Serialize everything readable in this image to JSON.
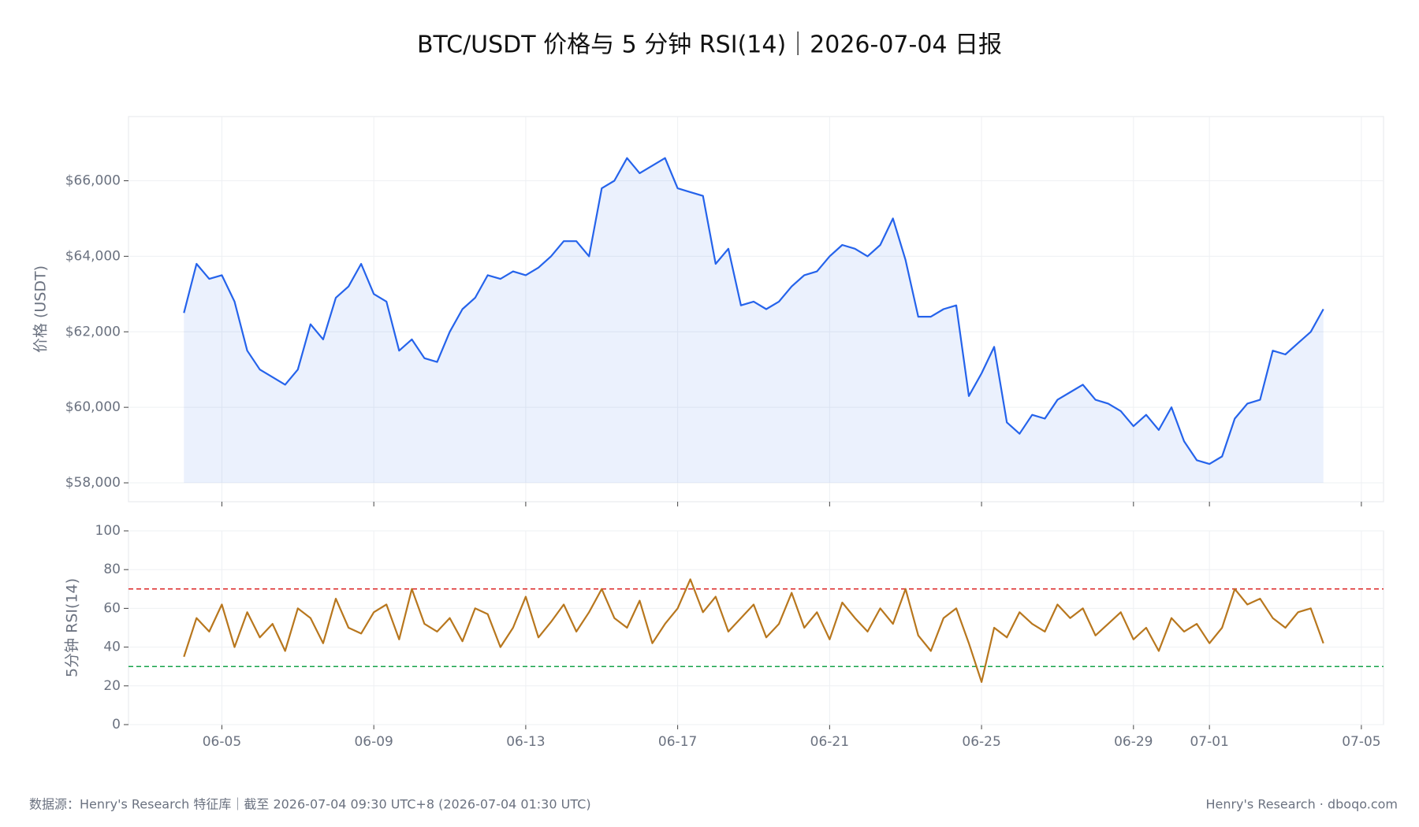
{
  "title": "BTC/USDT 价格与 5 分钟 RSI(14)｜2026-07-04 日报",
  "footer": {
    "source": "数据源：Henry's Research 特征库｜截至 2026-07-04 09:30 UTC+8 (2026-07-04 01:30 UTC)",
    "brand": "Henry's Research · dboqo.com"
  },
  "chart_data": [
    {
      "type": "line",
      "y_label": "价格 (USDT)",
      "fill": true,
      "grid": true,
      "x": [
        "2026-06-04T00:00",
        "2026-06-04T08:00",
        "2026-06-04T16:00",
        "2026-06-05T00:00",
        "2026-06-05T08:00",
        "2026-06-05T16:00",
        "2026-06-06T00:00",
        "2026-06-06T08:00",
        "2026-06-06T16:00",
        "2026-06-07T00:00",
        "2026-06-07T08:00",
        "2026-06-07T16:00",
        "2026-06-08T00:00",
        "2026-06-08T08:00",
        "2026-06-08T16:00",
        "2026-06-09T00:00",
        "2026-06-09T08:00",
        "2026-06-09T16:00",
        "2026-06-10T00:00",
        "2026-06-10T08:00",
        "2026-06-10T16:00",
        "2026-06-11T00:00",
        "2026-06-11T08:00",
        "2026-06-11T16:00",
        "2026-06-12T00:00",
        "2026-06-12T08:00",
        "2026-06-12T16:00",
        "2026-06-13T00:00",
        "2026-06-13T08:00",
        "2026-06-13T16:00",
        "2026-06-14T00:00",
        "2026-06-14T08:00",
        "2026-06-14T16:00",
        "2026-06-15T00:00",
        "2026-06-15T08:00",
        "2026-06-15T16:00",
        "2026-06-16T00:00",
        "2026-06-16T08:00",
        "2026-06-16T16:00",
        "2026-06-17T00:00",
        "2026-06-17T08:00",
        "2026-06-17T16:00",
        "2026-06-18T00:00",
        "2026-06-18T08:00",
        "2026-06-18T16:00",
        "2026-06-19T00:00",
        "2026-06-19T08:00",
        "2026-06-19T16:00",
        "2026-06-20T00:00",
        "2026-06-20T08:00",
        "2026-06-20T16:00",
        "2026-06-21T00:00",
        "2026-06-21T08:00",
        "2026-06-21T16:00",
        "2026-06-22T00:00",
        "2026-06-22T08:00",
        "2026-06-22T16:00",
        "2026-06-23T00:00",
        "2026-06-23T08:00",
        "2026-06-23T16:00",
        "2026-06-24T00:00",
        "2026-06-24T08:00",
        "2026-06-24T16:00",
        "2026-06-25T00:00",
        "2026-06-25T08:00",
        "2026-06-25T16:00",
        "2026-06-26T00:00",
        "2026-06-26T08:00",
        "2026-06-26T16:00",
        "2026-06-27T00:00",
        "2026-06-27T08:00",
        "2026-06-27T16:00",
        "2026-06-28T00:00",
        "2026-06-28T08:00",
        "2026-06-28T16:00",
        "2026-06-29T00:00",
        "2026-06-29T08:00",
        "2026-06-29T16:00",
        "2026-06-30T00:00",
        "2026-06-30T08:00",
        "2026-06-30T16:00",
        "2026-07-01T00:00",
        "2026-07-01T08:00",
        "2026-07-01T16:00",
        "2026-07-02T00:00",
        "2026-07-02T08:00",
        "2026-07-02T16:00",
        "2026-07-03T00:00",
        "2026-07-03T08:00",
        "2026-07-03T16:00",
        "2026-07-04T00:00"
      ],
      "series": [
        {
          "color": "#2563eb",
          "values": [
            62500,
            63800,
            63400,
            63500,
            62800,
            61500,
            61000,
            60800,
            60600,
            61000,
            62200,
            61800,
            62900,
            63200,
            63800,
            63000,
            62800,
            61500,
            61800,
            61300,
            61200,
            62000,
            62600,
            62900,
            63500,
            63400,
            63600,
            63500,
            63700,
            64000,
            64400,
            64400,
            64000,
            65800,
            66000,
            66600,
            66200,
            66400,
            66600,
            65800,
            65700,
            65600,
            63800,
            64200,
            62700,
            62800,
            62600,
            62800,
            63200,
            63500,
            63600,
            64000,
            64300,
            64200,
            64000,
            64300,
            65000,
            63900,
            62400,
            62400,
            62600,
            62700,
            60300,
            60900,
            61600,
            59600,
            59300,
            59800,
            59700,
            60200,
            60400,
            60600,
            60200,
            60100,
            59900,
            59500,
            59800,
            59400,
            60000,
            59100,
            58600,
            58500,
            58700,
            59700,
            60100,
            60200,
            61500,
            61400,
            61700,
            62000,
            62600
          ]
        }
      ],
      "xlim": [
        "2026-06-02T13:00",
        "2026-07-05T14:00"
      ],
      "xticks": [
        "2026-06-05T00:00",
        "2026-06-09T00:00",
        "2026-06-13T00:00",
        "2026-06-17T00:00",
        "2026-06-21T00:00",
        "2026-06-25T00:00",
        "2026-06-29T00:00",
        "2026-07-01T00:00",
        "2026-07-05T00:00"
      ],
      "ylim": [
        57500,
        67700
      ],
      "yticks": [
        {
          "value": 58000,
          "label": "$58,000"
        },
        {
          "value": 60000,
          "label": "$60,000"
        },
        {
          "value": 62000,
          "label": "$62,000"
        },
        {
          "value": 64000,
          "label": "$64,000"
        },
        {
          "value": 66000,
          "label": "$66,000"
        }
      ]
    },
    {
      "type": "line",
      "y_label": "5分钟 RSI(14)",
      "fill": false,
      "grid": true,
      "x": [
        "2026-06-04T00:00",
        "2026-06-04T08:00",
        "2026-06-04T16:00",
        "2026-06-05T00:00",
        "2026-06-05T08:00",
        "2026-06-05T16:00",
        "2026-06-06T00:00",
        "2026-06-06T08:00",
        "2026-06-06T16:00",
        "2026-06-07T00:00",
        "2026-06-07T08:00",
        "2026-06-07T16:00",
        "2026-06-08T00:00",
        "2026-06-08T08:00",
        "2026-06-08T16:00",
        "2026-06-09T00:00",
        "2026-06-09T08:00",
        "2026-06-09T16:00",
        "2026-06-10T00:00",
        "2026-06-10T08:00",
        "2026-06-10T16:00",
        "2026-06-11T00:00",
        "2026-06-11T08:00",
        "2026-06-11T16:00",
        "2026-06-12T00:00",
        "2026-06-12T08:00",
        "2026-06-12T16:00",
        "2026-06-13T00:00",
        "2026-06-13T08:00",
        "2026-06-13T16:00",
        "2026-06-14T00:00",
        "2026-06-14T08:00",
        "2026-06-14T16:00",
        "2026-06-15T00:00",
        "2026-06-15T08:00",
        "2026-06-15T16:00",
        "2026-06-16T00:00",
        "2026-06-16T08:00",
        "2026-06-16T16:00",
        "2026-06-17T00:00",
        "2026-06-17T08:00",
        "2026-06-17T16:00",
        "2026-06-18T00:00",
        "2026-06-18T08:00",
        "2026-06-18T16:00",
        "2026-06-19T00:00",
        "2026-06-19T08:00",
        "2026-06-19T16:00",
        "2026-06-20T00:00",
        "2026-06-20T08:00",
        "2026-06-20T16:00",
        "2026-06-21T00:00",
        "2026-06-21T08:00",
        "2026-06-21T16:00",
        "2026-06-22T00:00",
        "2026-06-22T08:00",
        "2026-06-22T16:00",
        "2026-06-23T00:00",
        "2026-06-23T08:00",
        "2026-06-23T16:00",
        "2026-06-24T00:00",
        "2026-06-24T08:00",
        "2026-06-24T16:00",
        "2026-06-25T00:00",
        "2026-06-25T08:00",
        "2026-06-25T16:00",
        "2026-06-26T00:00",
        "2026-06-26T08:00",
        "2026-06-26T16:00",
        "2026-06-27T00:00",
        "2026-06-27T08:00",
        "2026-06-27T16:00",
        "2026-06-28T00:00",
        "2026-06-28T08:00",
        "2026-06-28T16:00",
        "2026-06-29T00:00",
        "2026-06-29T08:00",
        "2026-06-29T16:00",
        "2026-06-30T00:00",
        "2026-06-30T08:00",
        "2026-06-30T16:00",
        "2026-07-01T00:00",
        "2026-07-01T08:00",
        "2026-07-01T16:00",
        "2026-07-02T00:00",
        "2026-07-02T08:00",
        "2026-07-02T16:00",
        "2026-07-03T00:00",
        "2026-07-03T08:00",
        "2026-07-03T16:00",
        "2026-07-04T00:00"
      ],
      "series": [
        {
          "color": "#b8771e",
          "values": [
            35,
            55,
            48,
            62,
            40,
            58,
            45,
            52,
            38,
            60,
            55,
            42,
            65,
            50,
            47,
            58,
            62,
            44,
            70,
            52,
            48,
            55,
            43,
            60,
            57,
            40,
            50,
            66,
            45,
            53,
            62,
            48,
            58,
            70,
            55,
            50,
            64,
            42,
            52,
            60,
            75,
            58,
            66,
            48,
            55,
            62,
            45,
            52,
            68,
            50,
            58,
            44,
            63,
            55,
            48,
            60,
            52,
            70,
            46,
            38,
            55,
            60,
            42,
            22,
            50,
            45,
            58,
            52,
            48,
            62,
            55,
            60,
            46,
            52,
            58,
            44,
            50,
            38,
            55,
            48,
            52,
            42,
            50,
            70,
            62,
            65,
            55,
            50,
            58,
            60,
            42
          ]
        }
      ],
      "reference_lines": [
        {
          "value": 70,
          "color": "#dc2626"
        },
        {
          "value": 30,
          "color": "#16a34a"
        }
      ],
      "xlim": [
        "2026-06-02T13:00",
        "2026-07-05T14:00"
      ],
      "xticks": [
        {
          "value": "2026-06-05T00:00",
          "label": "06-05"
        },
        {
          "value": "2026-06-09T00:00",
          "label": "06-09"
        },
        {
          "value": "2026-06-13T00:00",
          "label": "06-13"
        },
        {
          "value": "2026-06-17T00:00",
          "label": "06-17"
        },
        {
          "value": "2026-06-21T00:00",
          "label": "06-21"
        },
        {
          "value": "2026-06-25T00:00",
          "label": "06-25"
        },
        {
          "value": "2026-06-29T00:00",
          "label": "06-29"
        },
        {
          "value": "2026-07-01T00:00",
          "label": "07-01"
        },
        {
          "value": "2026-07-05T00:00",
          "label": "07-05"
        }
      ],
      "ylim": [
        0,
        100
      ],
      "yticks": [
        0,
        20,
        40,
        60,
        80,
        100
      ]
    }
  ]
}
